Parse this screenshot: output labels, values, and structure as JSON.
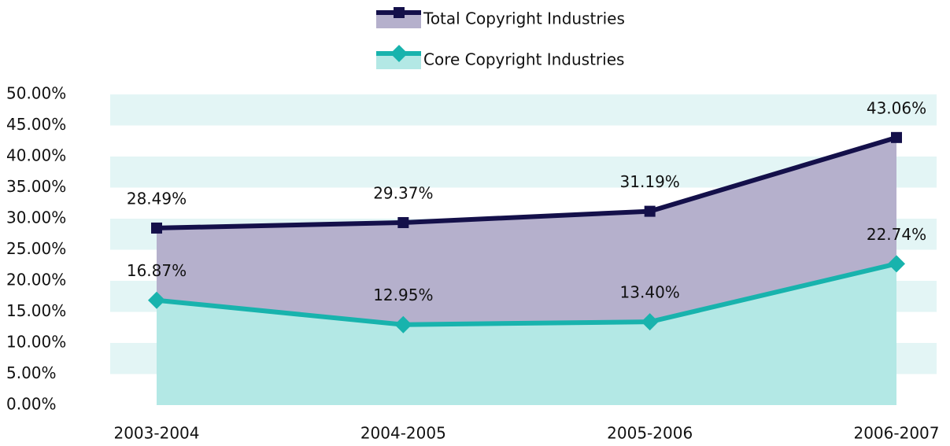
{
  "chart_data": {
    "type": "area-line",
    "categories": [
      "2003-2004",
      "2004-2005",
      "2005-2006",
      "2006-2007"
    ],
    "series": [
      {
        "name": "Total Copyright Industries",
        "color": "#14104a",
        "area_color": "#b5b0cc",
        "marker": "square",
        "values": [
          28.49,
          29.37,
          31.19,
          43.06
        ],
        "value_labels": [
          "28.49%",
          "29.37%",
          "31.19%",
          "43.06%"
        ]
      },
      {
        "name": "Core Copyright Industries",
        "color": "#18b3ad",
        "area_color": "#b3e8e5",
        "marker": "diamond",
        "values": [
          16.87,
          12.95,
          13.4,
          22.74
        ],
        "value_labels": [
          "16.87%",
          "12.95%",
          "13.40%",
          "22.74%"
        ]
      }
    ],
    "ylim": [
      0,
      50
    ],
    "yticks": [
      {
        "value": 0,
        "label": "0.00%"
      },
      {
        "value": 5,
        "label": "5.00%"
      },
      {
        "value": 10,
        "label": "10.00%"
      },
      {
        "value": 15,
        "label": "15.00%"
      },
      {
        "value": 20,
        "label": "20.00%"
      },
      {
        "value": 25,
        "label": "25.00%"
      },
      {
        "value": 30,
        "label": "30.00%"
      },
      {
        "value": 35,
        "label": "35.00%"
      },
      {
        "value": 40,
        "label": "40.00%"
      },
      {
        "value": 45,
        "label": "45.00%"
      },
      {
        "value": 50,
        "label": "50.00%"
      }
    ],
    "grid": true,
    "grid_color": "#e3f5f5",
    "legend": "top"
  }
}
